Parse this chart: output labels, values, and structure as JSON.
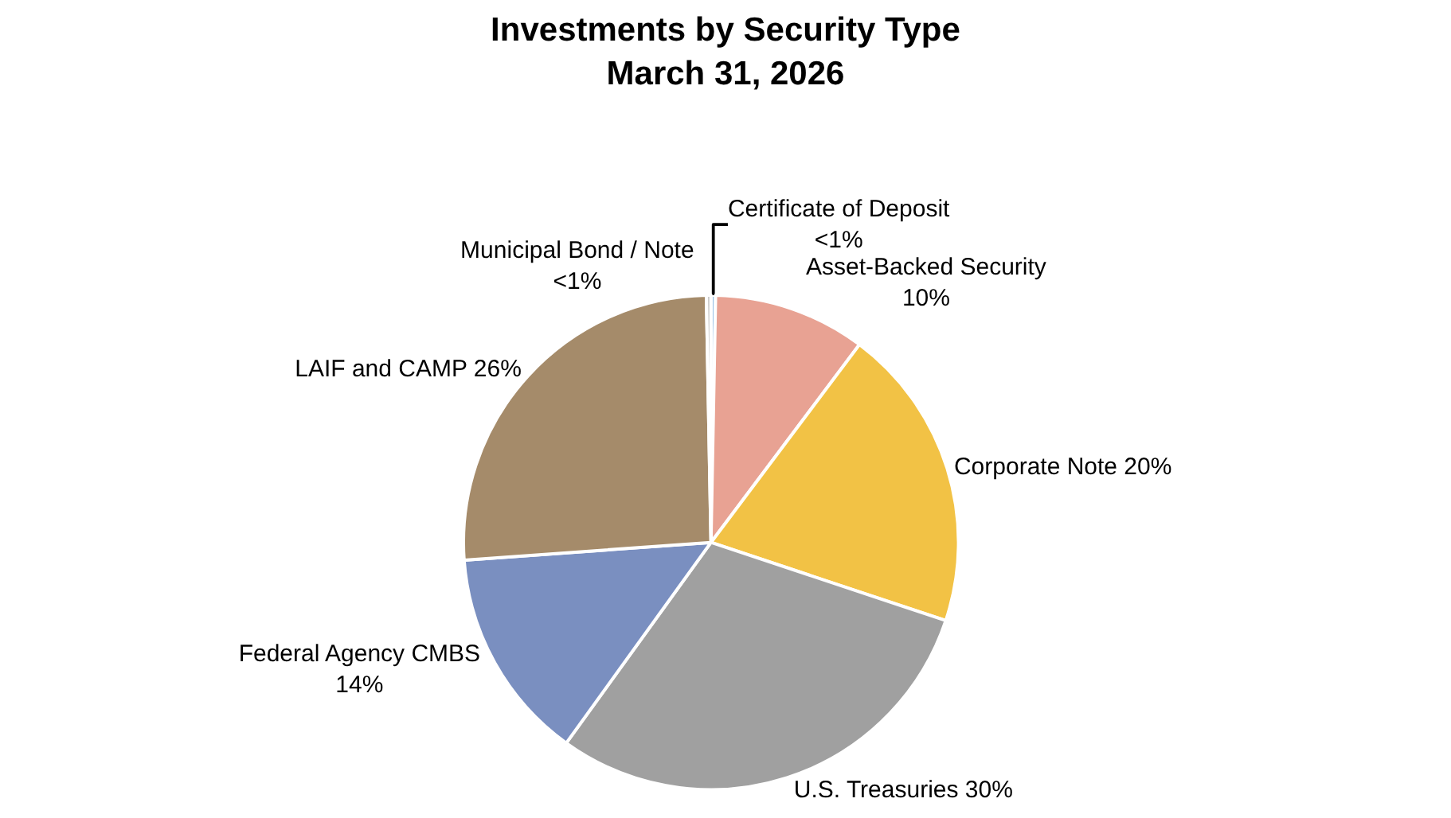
{
  "chart_data": {
    "type": "pie",
    "title": "Investments by Security Type",
    "subtitle": "March 31, 2026",
    "categories": [
      "Certificate of Deposit",
      "Asset-Backed Security",
      "Corporate Note",
      "U.S. Treasuries",
      "Federal Agency CMBS",
      "LAIF and CAMP",
      "Municipal Bond / Note"
    ],
    "values": [
      0.3,
      10,
      20,
      30,
      14,
      26,
      0.3
    ],
    "value_labels": [
      "<1%",
      "10%",
      "20%",
      "30%",
      "14%",
      "26%",
      "<1%"
    ],
    "colors": [
      "#9dc3e6",
      "#e8a293",
      "#f2c245",
      "#a0a0a0",
      "#7a8fc0",
      "#a58b6a",
      "#c9c9c9"
    ],
    "legend": false
  }
}
